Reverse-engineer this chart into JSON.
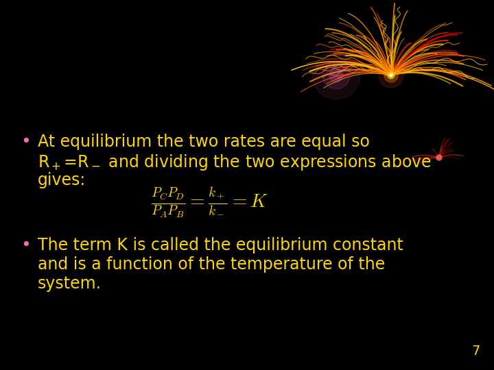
{
  "background_color": "#000000",
  "text_color": "#FFD700",
  "bullet_color": "#FF69B4",
  "bullet1_line1": "At equilibrium the two rates are equal so",
  "bullet1_line2_a": "R",
  "bullet1_line2_b": "+",
  "bullet1_line2_c": "=R",
  "bullet1_line2_d": "−",
  "bullet1_line2_e": " and dividing the two expressions above",
  "bullet1_line3": "gives:",
  "equation": "\\frac{P_C P_D}{P_A P_B} = \\frac{k_+}{k_-} = K",
  "bullet2_line1": "The term K is called the equilibrium constant",
  "bullet2_line2": "and is a function of the temperature of the",
  "bullet2_line3": "system.",
  "page_number": "7",
  "font_size_bullet": 17,
  "font_size_equation": 18,
  "font_size_page": 14
}
